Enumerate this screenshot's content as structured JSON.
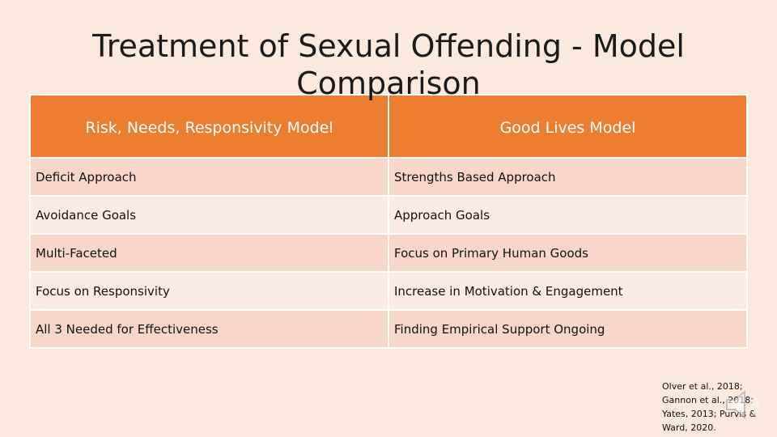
{
  "slide": {
    "title": "Treatment of Sexual Offending - Model Comparison"
  },
  "table": {
    "headers": [
      "Risk, Needs, Responsivity Model",
      "Good Lives Model"
    ],
    "rows": [
      [
        "Deficit Approach",
        "Strengths Based Approach"
      ],
      [
        "Avoidance Goals",
        "Approach Goals"
      ],
      [
        "Multi-Faceted",
        "Focus on Primary Human Goods"
      ],
      [
        "Focus on Responsivity",
        "Increase in Motivation & Engagement"
      ],
      [
        "All 3 Needed for Effectiveness",
        "Finding Empirical Support Ongoing"
      ]
    ]
  },
  "citation": {
    "lines": [
      "Olver et al., 2018;",
      "Gannon et al., 2018;",
      "Yates, 2013; Purvis &",
      "Ward, 2020."
    ]
  },
  "icons": {
    "audio": "speaker-icon"
  },
  "colors": {
    "background": "#fbe9de",
    "header": "#ed7d31",
    "row_dark": "#f8d6c8",
    "row_light": "#fbebe4"
  }
}
